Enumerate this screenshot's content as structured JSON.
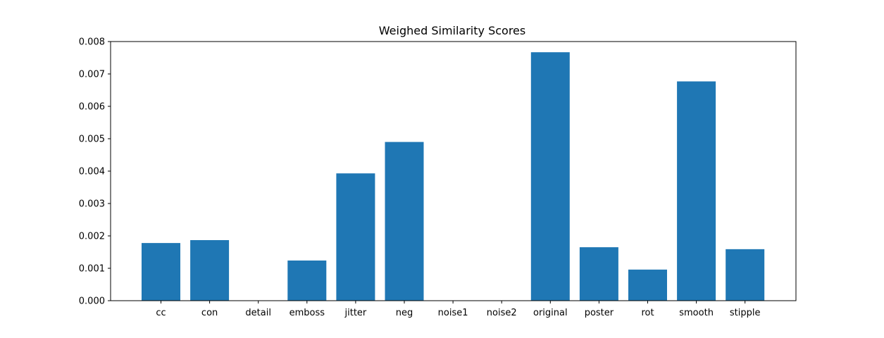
{
  "chart_data": {
    "type": "bar",
    "title": "Weighed Similarity Scores",
    "xlabel": "",
    "ylabel": "",
    "categories": [
      "cc",
      "con",
      "detail",
      "emboss",
      "jitter",
      "neg",
      "noise1",
      "noise2",
      "original",
      "poster",
      "rot",
      "smooth",
      "stipple"
    ],
    "values": [
      0.00178,
      0.00187,
      0.0,
      0.00124,
      0.00393,
      0.0049,
      0.0,
      0.0,
      0.00767,
      0.00165,
      0.00096,
      0.00677,
      0.00159
    ],
    "ylim": [
      0,
      0.008
    ],
    "yticks": [
      "0.000",
      "0.001",
      "0.002",
      "0.003",
      "0.004",
      "0.005",
      "0.006",
      "0.007",
      "0.008"
    ],
    "bar_color": "#1f77b4",
    "grid": false,
    "legend": "none"
  }
}
